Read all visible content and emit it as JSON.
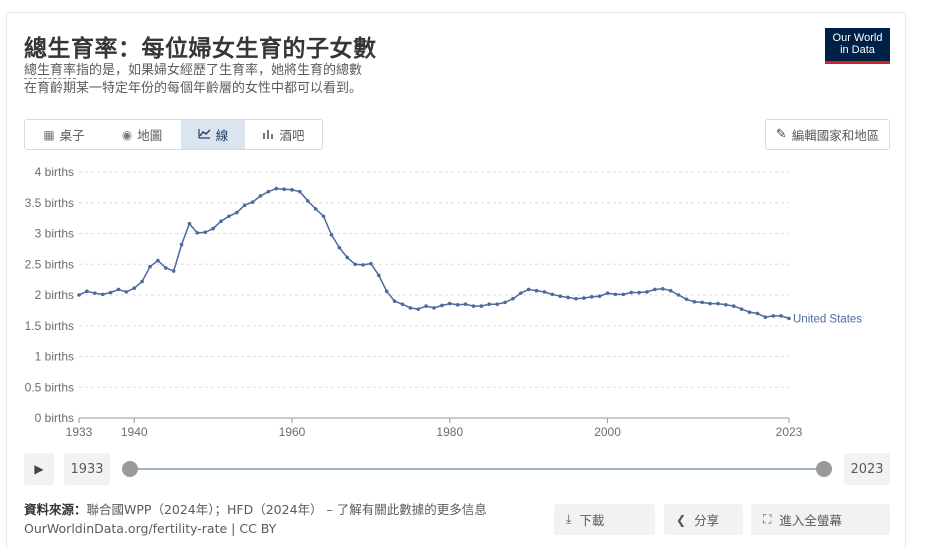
{
  "header": {
    "title": "總生育率：每位婦女生育的子女數",
    "subtitle_term": "總生育率",
    "subtitle_rest_line1": "指的是，如果婦女經歷了生育率，她將生育的總數",
    "subtitle_line2": "在育齡期某一特定年份的每個年齡層的女性中都可以看到。"
  },
  "logo": {
    "line1": "Our World",
    "line2": "in Data",
    "bg_color": "#002147",
    "accent_color": "#ce261e"
  },
  "tabs": [
    {
      "label": "桌子",
      "icon": "table-icon",
      "active": false
    },
    {
      "label": "地圖",
      "icon": "globe-icon",
      "active": false
    },
    {
      "label": "線",
      "icon": "line-chart-icon",
      "active": true
    },
    {
      "label": "酒吧",
      "icon": "bar-chart-icon",
      "active": false
    }
  ],
  "edit_button": {
    "label": "編輯國家和地區",
    "icon": "pencil-icon"
  },
  "timeline": {
    "start_label": "1933",
    "end_label": "2023",
    "play_icon": "play-icon"
  },
  "footer": {
    "source_label": "資料來源：",
    "source_text": "聯合國WPP（2024年）；HFD（2024年）",
    "source_link": " – 了解有關此數據的更多信息",
    "url_line": "OurWorldinData.org/fertility-rate | CC BY"
  },
  "buttons": {
    "download": "下載",
    "share": "分享",
    "fullscreen": "進入全螢幕"
  },
  "chart_data": {
    "type": "line",
    "title": "",
    "xlabel": "",
    "ylabel": "",
    "ylim": [
      0,
      4
    ],
    "xlim": [
      1933,
      2023
    ],
    "y_ticks": [
      "0 births",
      "0.5 births",
      "1 births",
      "1.5 births",
      "2 births",
      "2.5 births",
      "3 births",
      "3.5 births",
      "4 births"
    ],
    "y_tick_values": [
      0,
      0.5,
      1,
      1.5,
      2,
      2.5,
      3,
      3.5,
      4
    ],
    "x_ticks": [
      "1933",
      "1940",
      "1960",
      "1980",
      "2000",
      "2023"
    ],
    "x_tick_values": [
      1933,
      1940,
      1960,
      1980,
      2000,
      2023
    ],
    "grid": "horizontal dashed",
    "series": [
      {
        "name": "United States",
        "color": "#4c6a9c",
        "x": [
          1933,
          1934,
          1935,
          1936,
          1937,
          1938,
          1939,
          1940,
          1941,
          1942,
          1943,
          1944,
          1945,
          1946,
          1947,
          1948,
          1949,
          1950,
          1951,
          1952,
          1953,
          1954,
          1955,
          1956,
          1957,
          1958,
          1959,
          1960,
          1961,
          1962,
          1963,
          1964,
          1965,
          1966,
          1967,
          1968,
          1969,
          1970,
          1971,
          1972,
          1973,
          1974,
          1975,
          1976,
          1977,
          1978,
          1979,
          1980,
          1981,
          1982,
          1983,
          1984,
          1985,
          1986,
          1987,
          1988,
          1989,
          1990,
          1991,
          1992,
          1993,
          1994,
          1995,
          1996,
          1997,
          1998,
          1999,
          2000,
          2001,
          2002,
          2003,
          2004,
          2005,
          2006,
          2007,
          2008,
          2009,
          2010,
          2011,
          2012,
          2013,
          2014,
          2015,
          2016,
          2017,
          2018,
          2019,
          2020,
          2021,
          2022,
          2023
        ],
        "values": [
          2.0,
          2.06,
          2.03,
          2.01,
          2.04,
          2.09,
          2.05,
          2.11,
          2.22,
          2.46,
          2.56,
          2.44,
          2.39,
          2.82,
          3.16,
          3.01,
          3.02,
          3.08,
          3.2,
          3.28,
          3.34,
          3.46,
          3.51,
          3.61,
          3.68,
          3.73,
          3.72,
          3.71,
          3.68,
          3.53,
          3.4,
          3.28,
          2.98,
          2.77,
          2.61,
          2.5,
          2.49,
          2.51,
          2.32,
          2.06,
          1.9,
          1.85,
          1.79,
          1.77,
          1.82,
          1.79,
          1.83,
          1.86,
          1.84,
          1.85,
          1.82,
          1.82,
          1.85,
          1.85,
          1.88,
          1.94,
          2.03,
          2.09,
          2.07,
          2.05,
          2.01,
          1.98,
          1.96,
          1.94,
          1.95,
          1.97,
          1.98,
          2.03,
          2.01,
          2.01,
          2.04,
          2.04,
          2.05,
          2.09,
          2.1,
          2.07,
          2.0,
          1.93,
          1.89,
          1.88,
          1.86,
          1.86,
          1.84,
          1.82,
          1.77,
          1.72,
          1.7,
          1.64,
          1.66,
          1.66,
          1.62
        ]
      }
    ]
  }
}
